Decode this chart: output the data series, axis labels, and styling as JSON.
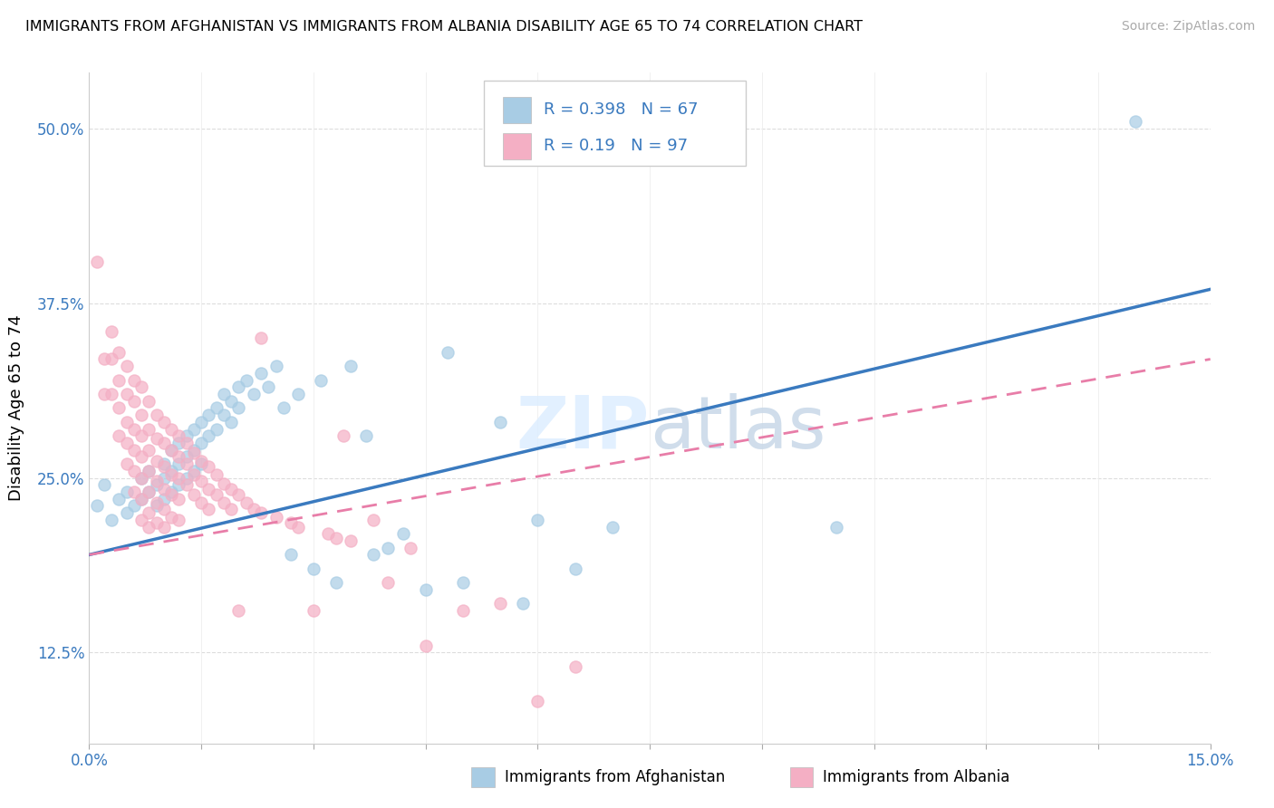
{
  "title": "IMMIGRANTS FROM AFGHANISTAN VS IMMIGRANTS FROM ALBANIA DISABILITY AGE 65 TO 74 CORRELATION CHART",
  "source": "Source: ZipAtlas.com",
  "ylabel": "Disability Age 65 to 74",
  "xlim": [
    0.0,
    0.15
  ],
  "ylim": [
    0.06,
    0.54
  ],
  "yticks": [
    0.125,
    0.25,
    0.375,
    0.5
  ],
  "ytick_labels": [
    "12.5%",
    "25.0%",
    "37.5%",
    "50.0%"
  ],
  "afghanistan_color": "#a8cce4",
  "albania_color": "#f4afc4",
  "afghanistan_line_color": "#3a7abf",
  "albania_line_color": "#e87da8",
  "afghanistan_R": 0.398,
  "afghanistan_N": 67,
  "albania_R": 0.19,
  "albania_N": 97,
  "trend_afg": [
    0.195,
    0.385
  ],
  "trend_alb": [
    0.195,
    0.335
  ],
  "afghanistan_scatter": [
    [
      0.001,
      0.23
    ],
    [
      0.002,
      0.245
    ],
    [
      0.003,
      0.22
    ],
    [
      0.004,
      0.235
    ],
    [
      0.005,
      0.225
    ],
    [
      0.005,
      0.24
    ],
    [
      0.006,
      0.23
    ],
    [
      0.007,
      0.25
    ],
    [
      0.007,
      0.235
    ],
    [
      0.008,
      0.255
    ],
    [
      0.008,
      0.24
    ],
    [
      0.009,
      0.245
    ],
    [
      0.009,
      0.23
    ],
    [
      0.01,
      0.26
    ],
    [
      0.01,
      0.25
    ],
    [
      0.01,
      0.235
    ],
    [
      0.011,
      0.27
    ],
    [
      0.011,
      0.255
    ],
    [
      0.011,
      0.24
    ],
    [
      0.012,
      0.275
    ],
    [
      0.012,
      0.26
    ],
    [
      0.012,
      0.245
    ],
    [
      0.013,
      0.28
    ],
    [
      0.013,
      0.265
    ],
    [
      0.013,
      0.25
    ],
    [
      0.014,
      0.285
    ],
    [
      0.014,
      0.27
    ],
    [
      0.014,
      0.255
    ],
    [
      0.015,
      0.29
    ],
    [
      0.015,
      0.275
    ],
    [
      0.015,
      0.26
    ],
    [
      0.016,
      0.295
    ],
    [
      0.016,
      0.28
    ],
    [
      0.017,
      0.3
    ],
    [
      0.017,
      0.285
    ],
    [
      0.018,
      0.31
    ],
    [
      0.018,
      0.295
    ],
    [
      0.019,
      0.305
    ],
    [
      0.019,
      0.29
    ],
    [
      0.02,
      0.315
    ],
    [
      0.02,
      0.3
    ],
    [
      0.021,
      0.32
    ],
    [
      0.022,
      0.31
    ],
    [
      0.023,
      0.325
    ],
    [
      0.024,
      0.315
    ],
    [
      0.025,
      0.33
    ],
    [
      0.026,
      0.3
    ],
    [
      0.027,
      0.195
    ],
    [
      0.028,
      0.31
    ],
    [
      0.03,
      0.185
    ],
    [
      0.031,
      0.32
    ],
    [
      0.033,
      0.175
    ],
    [
      0.035,
      0.33
    ],
    [
      0.037,
      0.28
    ],
    [
      0.038,
      0.195
    ],
    [
      0.04,
      0.2
    ],
    [
      0.042,
      0.21
    ],
    [
      0.045,
      0.17
    ],
    [
      0.048,
      0.34
    ],
    [
      0.05,
      0.175
    ],
    [
      0.055,
      0.29
    ],
    [
      0.058,
      0.16
    ],
    [
      0.06,
      0.22
    ],
    [
      0.065,
      0.185
    ],
    [
      0.07,
      0.215
    ],
    [
      0.1,
      0.215
    ],
    [
      0.14,
      0.505
    ]
  ],
  "albania_scatter": [
    [
      0.001,
      0.405
    ],
    [
      0.002,
      0.335
    ],
    [
      0.002,
      0.31
    ],
    [
      0.003,
      0.355
    ],
    [
      0.003,
      0.335
    ],
    [
      0.003,
      0.31
    ],
    [
      0.004,
      0.34
    ],
    [
      0.004,
      0.32
    ],
    [
      0.004,
      0.3
    ],
    [
      0.004,
      0.28
    ],
    [
      0.005,
      0.33
    ],
    [
      0.005,
      0.31
    ],
    [
      0.005,
      0.29
    ],
    [
      0.005,
      0.275
    ],
    [
      0.005,
      0.26
    ],
    [
      0.006,
      0.32
    ],
    [
      0.006,
      0.305
    ],
    [
      0.006,
      0.285
    ],
    [
      0.006,
      0.27
    ],
    [
      0.006,
      0.255
    ],
    [
      0.006,
      0.24
    ],
    [
      0.007,
      0.315
    ],
    [
      0.007,
      0.295
    ],
    [
      0.007,
      0.28
    ],
    [
      0.007,
      0.265
    ],
    [
      0.007,
      0.25
    ],
    [
      0.007,
      0.235
    ],
    [
      0.007,
      0.22
    ],
    [
      0.008,
      0.305
    ],
    [
      0.008,
      0.285
    ],
    [
      0.008,
      0.27
    ],
    [
      0.008,
      0.255
    ],
    [
      0.008,
      0.24
    ],
    [
      0.008,
      0.225
    ],
    [
      0.008,
      0.215
    ],
    [
      0.009,
      0.295
    ],
    [
      0.009,
      0.278
    ],
    [
      0.009,
      0.262
    ],
    [
      0.009,
      0.248
    ],
    [
      0.009,
      0.232
    ],
    [
      0.009,
      0.218
    ],
    [
      0.01,
      0.29
    ],
    [
      0.01,
      0.275
    ],
    [
      0.01,
      0.258
    ],
    [
      0.01,
      0.242
    ],
    [
      0.01,
      0.228
    ],
    [
      0.01,
      0.215
    ],
    [
      0.011,
      0.285
    ],
    [
      0.011,
      0.27
    ],
    [
      0.011,
      0.252
    ],
    [
      0.011,
      0.238
    ],
    [
      0.011,
      0.222
    ],
    [
      0.012,
      0.28
    ],
    [
      0.012,
      0.265
    ],
    [
      0.012,
      0.25
    ],
    [
      0.012,
      0.235
    ],
    [
      0.012,
      0.22
    ],
    [
      0.013,
      0.275
    ],
    [
      0.013,
      0.26
    ],
    [
      0.013,
      0.245
    ],
    [
      0.014,
      0.268
    ],
    [
      0.014,
      0.252
    ],
    [
      0.014,
      0.238
    ],
    [
      0.015,
      0.262
    ],
    [
      0.015,
      0.248
    ],
    [
      0.015,
      0.232
    ],
    [
      0.016,
      0.258
    ],
    [
      0.016,
      0.242
    ],
    [
      0.016,
      0.228
    ],
    [
      0.017,
      0.252
    ],
    [
      0.017,
      0.238
    ],
    [
      0.018,
      0.246
    ],
    [
      0.018,
      0.232
    ],
    [
      0.019,
      0.242
    ],
    [
      0.019,
      0.228
    ],
    [
      0.02,
      0.238
    ],
    [
      0.02,
      0.155
    ],
    [
      0.021,
      0.232
    ],
    [
      0.022,
      0.228
    ],
    [
      0.023,
      0.35
    ],
    [
      0.023,
      0.225
    ],
    [
      0.025,
      0.222
    ],
    [
      0.027,
      0.218
    ],
    [
      0.028,
      0.215
    ],
    [
      0.03,
      0.155
    ],
    [
      0.032,
      0.21
    ],
    [
      0.033,
      0.207
    ],
    [
      0.034,
      0.28
    ],
    [
      0.035,
      0.205
    ],
    [
      0.038,
      0.22
    ],
    [
      0.04,
      0.175
    ],
    [
      0.043,
      0.2
    ],
    [
      0.045,
      0.13
    ],
    [
      0.05,
      0.155
    ],
    [
      0.055,
      0.16
    ],
    [
      0.06,
      0.09
    ],
    [
      0.065,
      0.115
    ]
  ]
}
